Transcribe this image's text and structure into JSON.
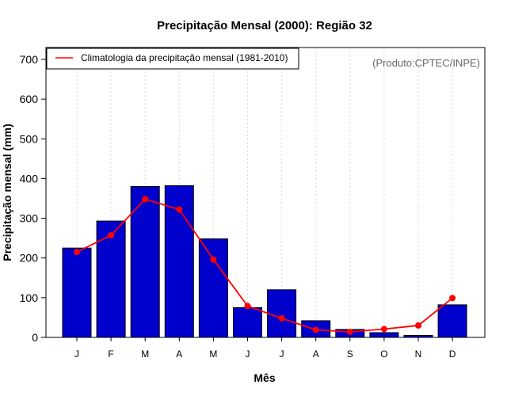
{
  "chart_data": {
    "type": "bar",
    "title": "Precipitação Mensal (2000): Região 32",
    "xlabel": "Mês",
    "ylabel": "Precipitação mensal (mm)",
    "credit": "(Produto:CPTEC/INPE)",
    "categories": [
      "J",
      "F",
      "M",
      "A",
      "M",
      "J",
      "J",
      "A",
      "S",
      "O",
      "N",
      "D"
    ],
    "ylim": [
      0,
      700
    ],
    "yticks": [
      0,
      100,
      200,
      300,
      400,
      500,
      600,
      700
    ],
    "grid": "vertical dotted",
    "legend_position": "top-left",
    "series": [
      {
        "name": "Precipitação mensal 2000",
        "kind": "bar",
        "color": "#0000CC",
        "values": [
          225,
          293,
          380,
          382,
          248,
          75,
          120,
          42,
          20,
          12,
          5,
          82
        ]
      },
      {
        "name": "Climatologia da precipitação mensal (1981-2010)",
        "kind": "line",
        "color": "#FF0000",
        "values": [
          215,
          257,
          348,
          322,
          196,
          79,
          48,
          19,
          14,
          21,
          30,
          99
        ]
      }
    ]
  }
}
